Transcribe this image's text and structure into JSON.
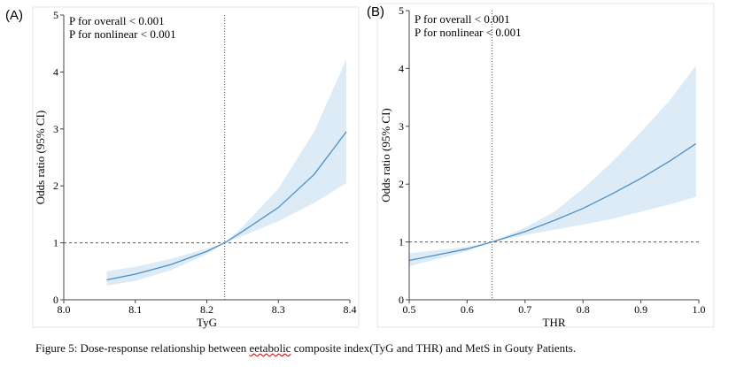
{
  "caption": {
    "before": "Figure 5: Dose-response relationship between ",
    "misspelled": "eetabolic",
    "after": " composite index(TyG and THR) and MetS in Gouty Patients."
  },
  "colors": {
    "line": "#4a90c8",
    "band": "#dcebf6",
    "ref": "#555555"
  },
  "chart_data": [
    {
      "type": "line",
      "panel_label": "(A)",
      "xlabel": "TyG",
      "ylabel": "Odds ratio (95% CI)",
      "xlim": [
        8.0,
        8.4
      ],
      "ylim": [
        0,
        5
      ],
      "xticks": [
        "8.0",
        "8.1",
        "8.2",
        "8.3",
        "8.4"
      ],
      "yticks": [
        "0",
        "1",
        "2",
        "3",
        "4",
        "5"
      ],
      "annotations": [
        "P for overall < 0.001",
        "P for nonlinear < 0.001"
      ],
      "reference_x": 8.225,
      "reference_y": 1,
      "x": [
        8.06,
        8.1,
        8.15,
        8.2,
        8.225,
        8.25,
        8.3,
        8.35,
        8.395
      ],
      "or": [
        0.35,
        0.45,
        0.62,
        0.85,
        1.0,
        1.2,
        1.62,
        2.2,
        2.95
      ],
      "lower": [
        0.25,
        0.33,
        0.52,
        0.8,
        1.0,
        1.12,
        1.38,
        1.7,
        2.05
      ],
      "upper": [
        0.5,
        0.58,
        0.72,
        0.9,
        1.0,
        1.28,
        1.95,
        2.95,
        4.22
      ]
    },
    {
      "type": "line",
      "panel_label": "(B)",
      "xlabel": "THR",
      "ylabel": "Odds ratio (95% CI)",
      "xlim": [
        0.5,
        1.0
      ],
      "ylim": [
        0,
        5
      ],
      "xticks": [
        "0.5",
        "0.6",
        "0.7",
        "0.8",
        "0.9",
        "1.0"
      ],
      "yticks": [
        "0",
        "1",
        "2",
        "3",
        "4",
        "5"
      ],
      "annotations": [
        "P for overall < 0.001",
        "P for nonlinear < 0.001"
      ],
      "reference_x": 0.643,
      "reference_y": 1,
      "x": [
        0.5,
        0.55,
        0.6,
        0.643,
        0.7,
        0.75,
        0.8,
        0.85,
        0.9,
        0.95,
        0.995
      ],
      "or": [
        0.68,
        0.78,
        0.88,
        1.0,
        1.18,
        1.37,
        1.58,
        1.83,
        2.1,
        2.4,
        2.7
      ],
      "lower": [
        0.58,
        0.71,
        0.84,
        1.0,
        1.12,
        1.21,
        1.3,
        1.4,
        1.52,
        1.65,
        1.78
      ],
      "upper": [
        0.8,
        0.86,
        0.92,
        1.0,
        1.25,
        1.52,
        1.92,
        2.38,
        2.9,
        3.45,
        4.05
      ]
    }
  ]
}
